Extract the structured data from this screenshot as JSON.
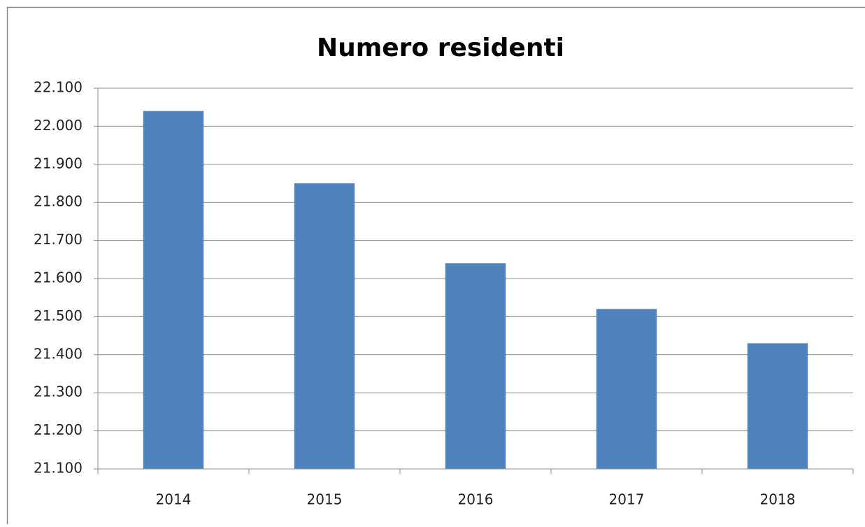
{
  "chart_data": {
    "type": "bar",
    "title": "Numero residenti",
    "categories": [
      "2014",
      "2015",
      "2016",
      "2017",
      "2018"
    ],
    "values": [
      22040,
      21850,
      21640,
      21520,
      21430
    ],
    "color": "#4f81bd",
    "ylim": [
      21100,
      22100
    ],
    "yticks": [
      {
        "value": 21100,
        "label": "21.100"
      },
      {
        "value": 21200,
        "label": "21.200"
      },
      {
        "value": 21300,
        "label": "21.300"
      },
      {
        "value": 21400,
        "label": "21.400"
      },
      {
        "value": 21500,
        "label": "21.500"
      },
      {
        "value": 21600,
        "label": "21.600"
      },
      {
        "value": 21700,
        "label": "21.700"
      },
      {
        "value": 21800,
        "label": "21.800"
      },
      {
        "value": 21900,
        "label": "21.900"
      },
      {
        "value": 22000,
        "label": "22.000"
      },
      {
        "value": 22100,
        "label": "22.100"
      }
    ],
    "grid": true
  }
}
